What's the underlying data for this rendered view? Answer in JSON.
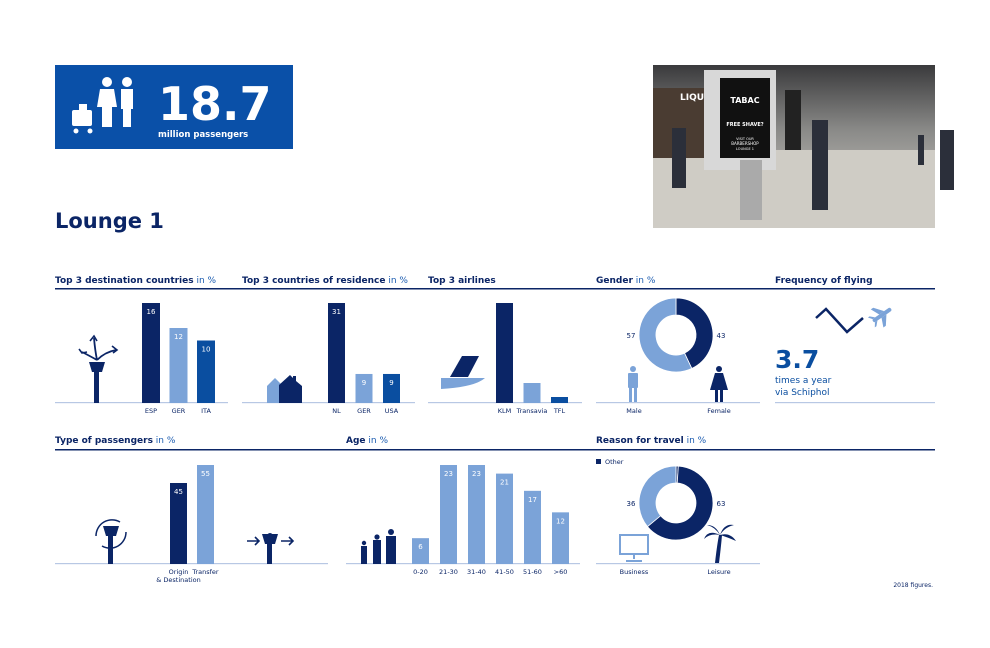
{
  "hero": {
    "number": "18.7",
    "caption": "million passengers",
    "icon": "passengers-with-cart-icon",
    "color": "#0a50a8"
  },
  "title": "Lounge 1",
  "photo": {
    "sign_brand": "TABAC",
    "sign_line1": "FREE SHAVE?",
    "sign_line2": "VISIT OUR",
    "sign_line3": "BARBERSHOP",
    "sign_line4": "LOUNGE 1",
    "shop_sign": "LIQU"
  },
  "colors": {
    "dark": "#0b2566",
    "light": "#7ba3d8",
    "mid": "#0a4ea0",
    "rule": "#0b2566",
    "baseline": "#b8c8e4"
  },
  "sections": {
    "destination": {
      "title": "Top 3 destination countries",
      "unit": " in %"
    },
    "residence": {
      "title": "Top 3 countries of residence",
      "unit": " in %"
    },
    "airlines": {
      "title": "Top 3 airlines"
    },
    "gender": {
      "title": "Gender",
      "unit": " in %"
    },
    "frequency": {
      "title": "Frequency of flying",
      "value": "3.7",
      "line1": "times a year",
      "line2": "via Schiphol"
    },
    "type": {
      "title": "Type of passengers",
      "unit": " in %"
    },
    "age": {
      "title": "Age",
      "unit": " in %"
    },
    "reason": {
      "title": "Reason for travel",
      "unit": " in %"
    }
  },
  "footnote": "2018 figures.",
  "chart_data": [
    {
      "id": "destination",
      "type": "bar",
      "categories": [
        "ESP",
        "GER",
        "ITA"
      ],
      "values": [
        16,
        12,
        10
      ],
      "colors": [
        "#0b2566",
        "#7ba3d8",
        "#0a4ea0"
      ]
    },
    {
      "id": "residence",
      "type": "bar",
      "categories": [
        "NL",
        "GER",
        "USA"
      ],
      "values": [
        31,
        9,
        9
      ],
      "colors": [
        "#0b2566",
        "#7ba3d8",
        "#0a4ea0"
      ]
    },
    {
      "id": "airlines",
      "type": "bar",
      "categories": [
        "KLM",
        "Transavia",
        "TFL"
      ],
      "relative_values": [
        1,
        0.2,
        0.06
      ],
      "colors": [
        "#0b2566",
        "#7ba3d8",
        "#0a4ea0"
      ]
    },
    {
      "id": "gender",
      "type": "pie",
      "categories": [
        "Male",
        "Female"
      ],
      "values": [
        57,
        43
      ],
      "colors": [
        "#7ba3d8",
        "#0b2566"
      ]
    },
    {
      "id": "type",
      "type": "bar",
      "categories": [
        "Origin & Destination",
        "Transfer"
      ],
      "label_lines": [
        [
          "Origin",
          "& Destination"
        ],
        [
          "Transfer"
        ]
      ],
      "values": [
        45,
        55
      ],
      "colors": [
        "#0b2566",
        "#7ba3d8"
      ]
    },
    {
      "id": "age",
      "type": "bar",
      "categories": [
        "0-20",
        "21-30",
        "31-40",
        "41-50",
        "51-60",
        ">60"
      ],
      "values": [
        6,
        23,
        23,
        21,
        17,
        12
      ],
      "colors": [
        "#7ba3d8",
        "#7ba3d8",
        "#7ba3d8",
        "#7ba3d8",
        "#7ba3d8",
        "#7ba3d8"
      ]
    },
    {
      "id": "reason",
      "type": "pie",
      "categories": [
        "Business",
        "Leisure",
        "Other"
      ],
      "values": [
        36,
        63,
        1
      ],
      "colors": [
        "#7ba3d8",
        "#0b2566",
        "#0b2566"
      ],
      "legend": [
        "Other"
      ]
    }
  ]
}
